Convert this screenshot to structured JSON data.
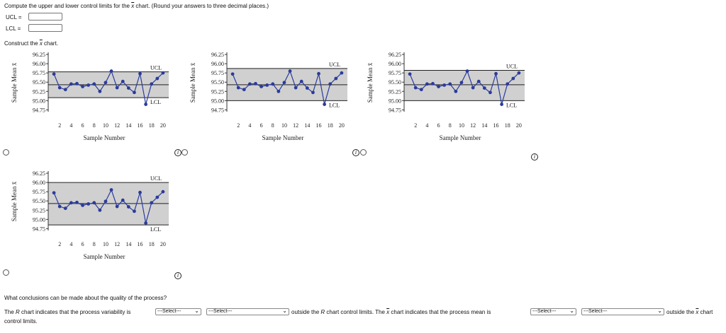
{
  "instructions": {
    "pre": "Compute the upper and lower control limits for the ",
    "xbar": "x",
    "post": " chart. (Round your answers to three decimal places.)"
  },
  "fields": [
    {
      "label": "UCL =",
      "value": ""
    },
    {
      "label": "LCL =",
      "value": ""
    }
  ],
  "construct": {
    "pre": "Construct the ",
    "xbar": "x",
    "post": " chart."
  },
  "chart_common": {
    "ylabel": "Sample Mean x̄",
    "xlabel": "Sample Number",
    "yticks": [
      "96.25",
      "96.00",
      "95.75",
      "95.50",
      "95.25",
      "95.00",
      "94.75"
    ],
    "ytick_values": [
      96.25,
      96.0,
      95.75,
      95.5,
      95.25,
      95.0,
      94.75
    ],
    "xticks": [
      "2",
      "4",
      "6",
      "8",
      "10",
      "12",
      "14",
      "16",
      "18",
      "20"
    ],
    "ucl_label": "UCL",
    "lcl_label": "LCL",
    "line_color": "#2b3b9c",
    "band_color": "#d0d0d0"
  },
  "chart_data": [
    {
      "type": "line",
      "ucl": 95.78,
      "center": 95.43,
      "lcl": 95.08,
      "x": [
        1,
        2,
        3,
        4,
        5,
        6,
        7,
        8,
        9,
        10,
        11,
        12,
        13,
        14,
        15,
        16,
        17,
        18,
        19,
        20
      ],
      "y": [
        95.72,
        95.35,
        95.3,
        95.45,
        95.46,
        95.38,
        95.42,
        95.45,
        95.25,
        95.49,
        95.8,
        95.35,
        95.52,
        95.34,
        95.22,
        95.73,
        94.9,
        95.45,
        95.6,
        95.75
      ]
    },
    {
      "type": "line",
      "ucl": 95.87,
      "center": 95.43,
      "lcl": 95.0,
      "x": [
        1,
        2,
        3,
        4,
        5,
        6,
        7,
        8,
        9,
        10,
        11,
        12,
        13,
        14,
        15,
        16,
        17,
        18,
        19,
        20
      ],
      "y": [
        95.72,
        95.35,
        95.3,
        95.45,
        95.46,
        95.38,
        95.42,
        95.45,
        95.25,
        95.49,
        95.8,
        95.35,
        95.52,
        95.34,
        95.22,
        95.73,
        94.9,
        95.45,
        95.6,
        95.75
      ]
    },
    {
      "type": "line",
      "ucl": 95.82,
      "center": 95.43,
      "lcl": 95.0,
      "x": [
        1,
        2,
        3,
        4,
        5,
        6,
        7,
        8,
        9,
        10,
        11,
        12,
        13,
        14,
        15,
        16,
        17,
        18,
        19,
        20
      ],
      "y": [
        95.72,
        95.35,
        95.3,
        95.45,
        95.46,
        95.38,
        95.42,
        95.45,
        95.25,
        95.49,
        95.8,
        95.35,
        95.52,
        95.34,
        95.22,
        95.73,
        94.9,
        95.45,
        95.6,
        95.75
      ]
    },
    {
      "type": "line",
      "ucl": 96.0,
      "center": 95.43,
      "lcl": 94.85,
      "x": [
        1,
        2,
        3,
        4,
        5,
        6,
        7,
        8,
        9,
        10,
        11,
        12,
        13,
        14,
        15,
        16,
        17,
        18,
        19,
        20
      ],
      "y": [
        95.72,
        95.35,
        95.3,
        95.45,
        95.46,
        95.38,
        95.42,
        95.45,
        95.25,
        95.49,
        95.8,
        95.35,
        95.52,
        95.34,
        95.22,
        95.73,
        94.9,
        95.45,
        95.6,
        95.75
      ]
    }
  ],
  "conclusions": {
    "question": "What conclusions can be made about the quality of the process?",
    "s1_pre": "The ",
    "s1_r": "R",
    "s1_mid": " chart indicates that the process variability is",
    "s2_pre": "outside the ",
    "s2_r": "R",
    "s2_mid": " chart control limits. The ",
    "s2_x": "x",
    "s2_post": " chart indicates that the process mean is",
    "s3_pre": "outside the ",
    "s3_x": "x",
    "s3_post": " chart",
    "s4": "control limits.",
    "select_label": "---Select---"
  }
}
